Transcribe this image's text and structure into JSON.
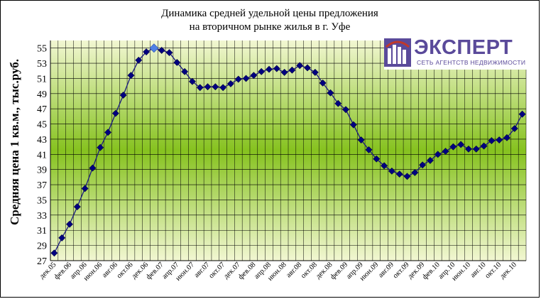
{
  "chart_data": {
    "type": "line",
    "title": "Динамика средней удельной цены предложения на вторичном рынке жилья в г. Уфе",
    "title_lines": [
      "Динамика средней удельной цены предложения",
      "на вторичном рынке жилья в г. Уфе"
    ],
    "ylabel": "Средняя цена 1 кв.м., тыс.руб.",
    "xlabel": "",
    "ylim": [
      27,
      56
    ],
    "yticks": [
      27,
      29,
      31,
      33,
      35,
      37,
      39,
      41,
      43,
      45,
      47,
      49,
      51,
      53,
      55
    ],
    "grid": true,
    "legend": "none",
    "x_tick_labels": [
      "дек.05",
      "фев.06",
      "апр.06",
      "июн.06",
      "авг.06",
      "окт.06",
      "дек.06",
      "фев.07",
      "апр.07",
      "июн.07",
      "авг.07",
      "окт.07",
      "дек.07",
      "фев.08",
      "апр.08",
      "июн.08",
      "авг.08",
      "окт.08",
      "дек.08",
      "фев.09",
      "апр.09",
      "июн.09",
      "авг.09",
      "окт.09",
      "дек.09",
      "фев.10",
      "апр.10",
      "июн.10",
      "авг.10",
      "окт.10",
      "дек.10"
    ],
    "series": [
      {
        "values": [
          28.0,
          30.0,
          31.8,
          34.1,
          36.5,
          39.2,
          41.9,
          43.9,
          46.4,
          48.8,
          51.4,
          53.4,
          54.5,
          55.0,
          54.7,
          54.4,
          53.1,
          51.9,
          50.6,
          49.8,
          49.9,
          49.9,
          49.8,
          50.3,
          50.9,
          51.0,
          51.4,
          51.9,
          52.2,
          52.3,
          51.8,
          52.1,
          52.7,
          52.4,
          51.8,
          50.4,
          49.1,
          47.7,
          46.9,
          44.9,
          42.9,
          41.6,
          40.4,
          39.5,
          38.8,
          38.4,
          38.1,
          38.6,
          39.6,
          40.2,
          41.0,
          41.4,
          42.0,
          42.3,
          41.7,
          41.7,
          42.1,
          42.8,
          42.9,
          43.2,
          44.4,
          46.3
        ],
        "highlight_index": 13
      }
    ],
    "colors": {
      "line": "#1a1a80",
      "marker": "#000080",
      "highlight_marker": "#4f81e6",
      "grid": "#000000",
      "plot_bg_edge": "#f2f7d2",
      "plot_bg_mid": "#86c21f"
    }
  },
  "logo": {
    "word": "ЭКСПЕРТ",
    "subtitle": "СЕТЬ АГЕНТСТВ НЕДВИЖИМОСТИ",
    "color": "#5a4a9a"
  }
}
